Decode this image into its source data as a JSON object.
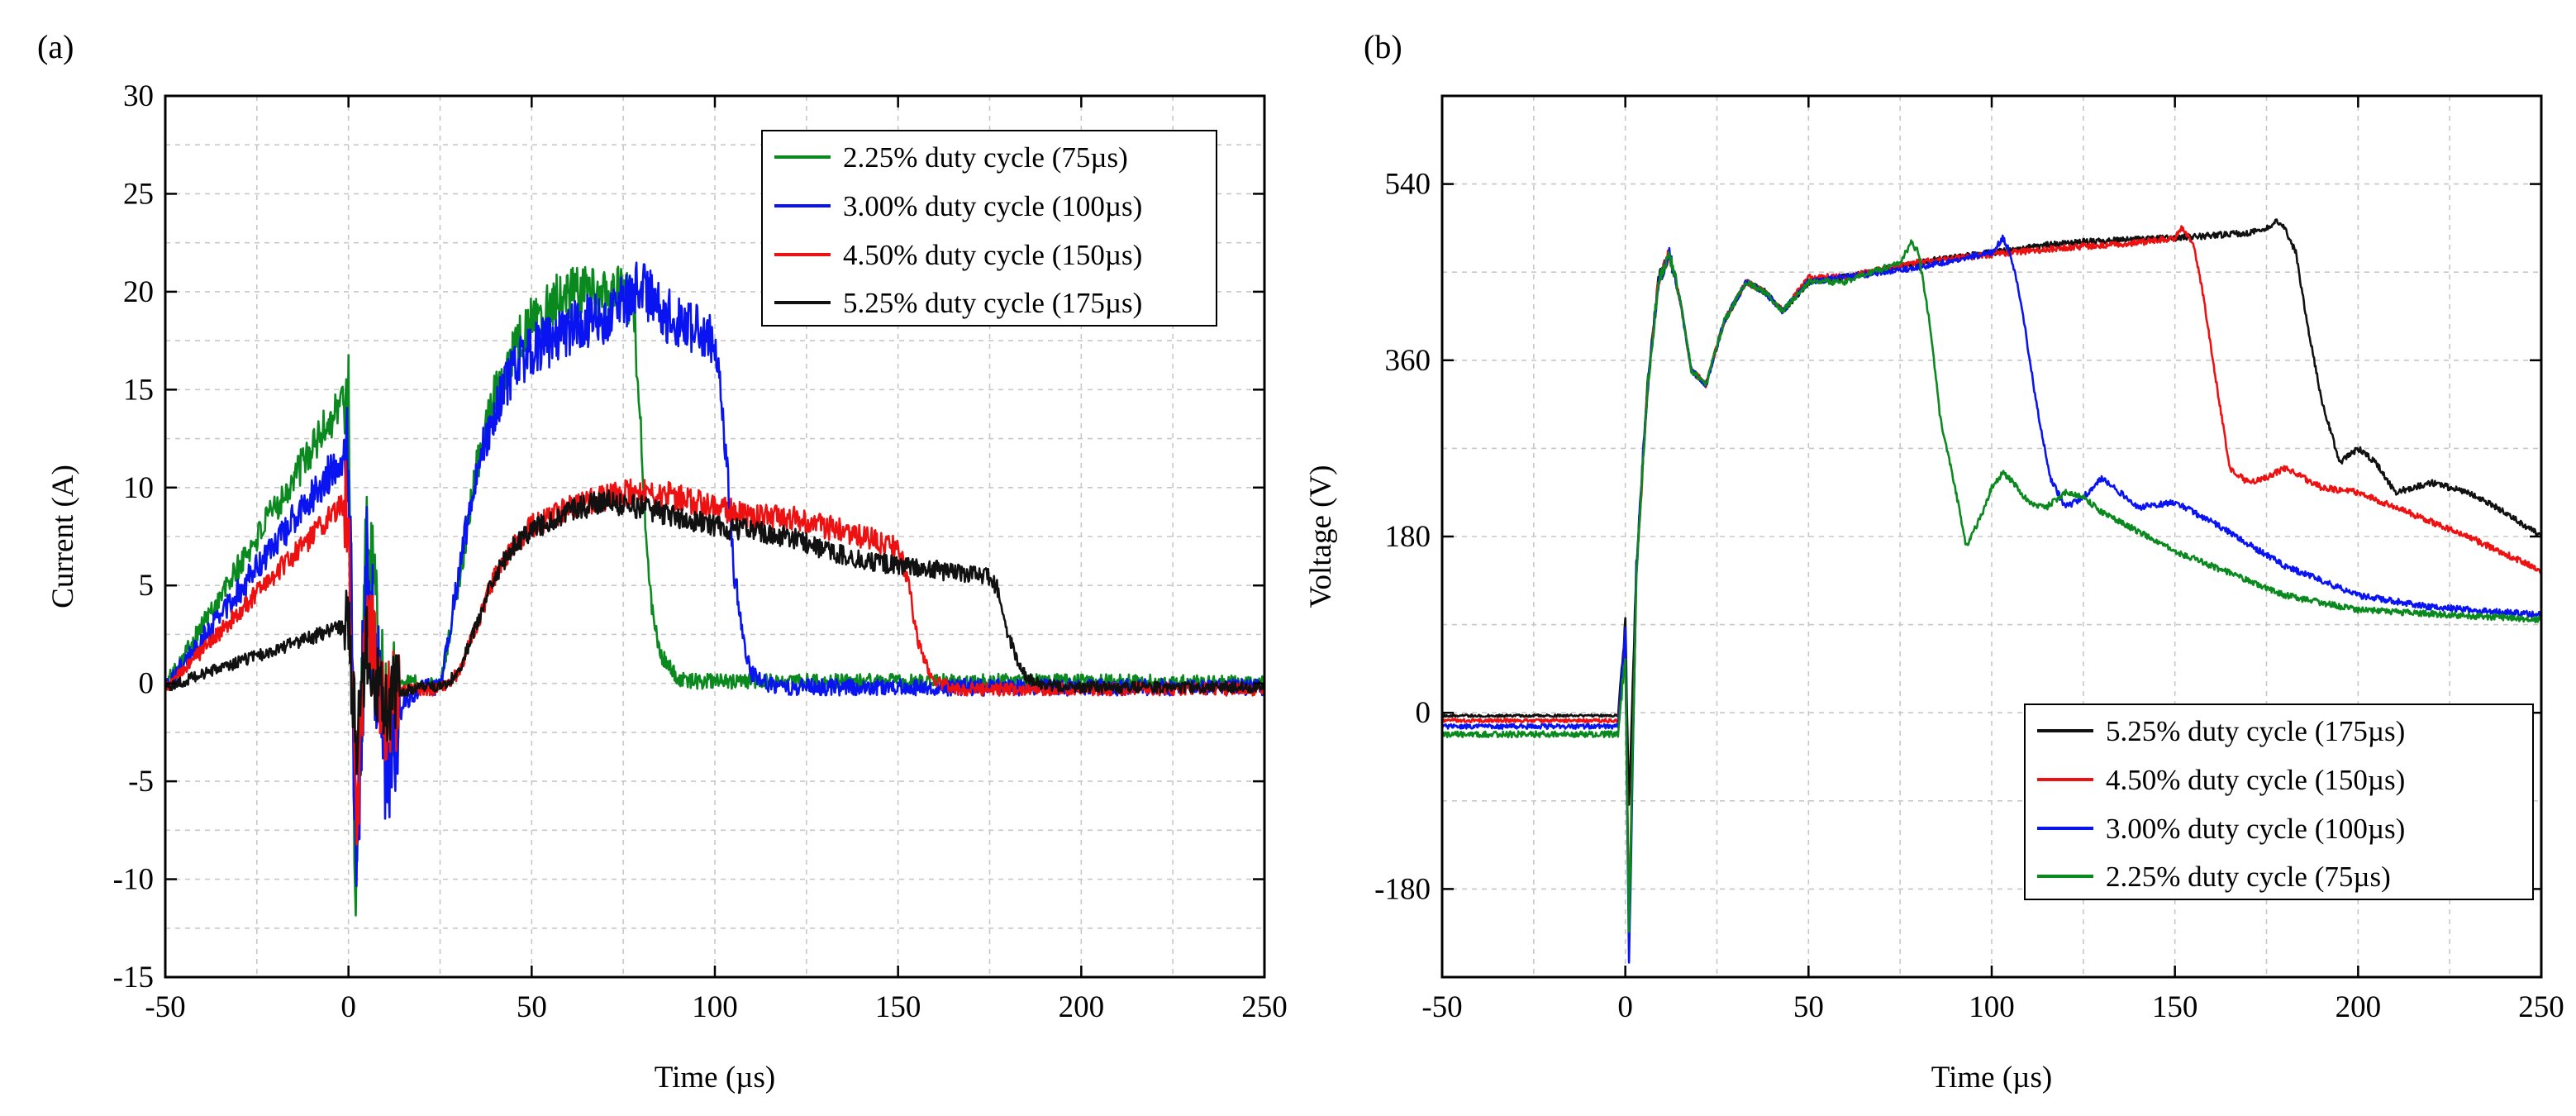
{
  "chart_data": [
    {
      "type": "line",
      "panel_label": "(a)",
      "xlabel": "Time (µs)",
      "ylabel": "Current (A)",
      "xlim": [
        -50,
        250
      ],
      "ylim": [
        -15,
        30
      ],
      "xticks": [
        -50,
        0,
        50,
        100,
        150,
        200,
        250
      ],
      "yticks": [
        -15,
        -10,
        -5,
        0,
        5,
        10,
        15,
        20,
        25,
        30
      ],
      "xticklabels": [
        "-50",
        "0",
        "50",
        "100",
        "150",
        "200",
        "250"
      ],
      "yticklabels": [
        "-15",
        "-10",
        "-5",
        "0",
        "5",
        "10",
        "15",
        "20",
        "25",
        "30"
      ],
      "grid": true,
      "legend": "top-right",
      "series": [
        {
          "name": "2.25% duty cycle (75µs)",
          "color": "#0a8a1e",
          "pulse_us": 75,
          "plateau": 20,
          "noise": 1.1,
          "x": [
            -50,
            0,
            2,
            5,
            10,
            15,
            20,
            25,
            30,
            35,
            40,
            45,
            50,
            55,
            60,
            65,
            70,
            75,
            78,
            80,
            82,
            85,
            90,
            95,
            100,
            150,
            200,
            250
          ],
          "y": [
            -0.1,
            15.0,
            -11.5,
            8.0,
            -2.0,
            0.3,
            -0.1,
            -0.1,
            5.0,
            11.0,
            15.0,
            17.0,
            18.5,
            19.5,
            20.0,
            20.0,
            20.0,
            20.0,
            19.0,
            12.0,
            5.0,
            1.5,
            0.2,
            0.1,
            0.1,
            0.1,
            0.1,
            0.0
          ]
        },
        {
          "name": "3.00% duty cycle (100µs)",
          "color": "#0a14f0",
          "pulse_us": 100,
          "plateau": 18.5,
          "noise": 1.2,
          "x": [
            -50,
            0,
            2,
            5,
            10,
            15,
            20,
            25,
            30,
            35,
            40,
            45,
            50,
            55,
            60,
            65,
            70,
            75,
            80,
            85,
            90,
            95,
            100,
            103,
            105,
            108,
            110,
            115,
            120,
            150,
            200,
            250
          ],
          "y": [
            -0.2,
            12.0,
            -10.0,
            6.0,
            -4.0,
            -1.0,
            -0.2,
            -0.2,
            5.5,
            11.0,
            14.0,
            16.0,
            17.0,
            17.5,
            18.0,
            18.5,
            18.5,
            19.5,
            20.5,
            19.0,
            18.5,
            18.0,
            17.5,
            12.0,
            6.0,
            2.0,
            0.5,
            -0.1,
            -0.2,
            -0.2,
            -0.2,
            -0.2
          ]
        },
        {
          "name": "4.50% duty cycle (150µs)",
          "color": "#ee1111",
          "pulse_us": 150,
          "plateau": 9.5,
          "noise": 0.9,
          "x": [
            -50,
            0,
            2,
            5,
            10,
            15,
            20,
            25,
            30,
            35,
            40,
            45,
            50,
            60,
            70,
            80,
            90,
            100,
            110,
            120,
            130,
            140,
            150,
            153,
            155,
            158,
            160,
            165,
            200,
            250
          ],
          "y": [
            -0.3,
            9.5,
            -8.0,
            4.0,
            -1.5,
            -0.3,
            -0.3,
            -0.3,
            0.5,
            3.0,
            5.5,
            7.0,
            8.0,
            9.0,
            9.5,
            9.8,
            9.5,
            9.0,
            8.5,
            8.5,
            8.0,
            7.5,
            7.0,
            5.0,
            2.5,
            0.8,
            0.2,
            -0.3,
            -0.3,
            -0.3
          ]
        },
        {
          "name": "5.25% duty cycle (175µs)",
          "color": "#111111",
          "pulse_us": 175,
          "plateau": 9.0,
          "noise": 0.8,
          "x": [
            -50,
            0,
            2,
            5,
            10,
            15,
            20,
            25,
            30,
            35,
            40,
            45,
            50,
            60,
            70,
            80,
            90,
            100,
            110,
            120,
            130,
            140,
            150,
            160,
            170,
            175,
            178,
            180,
            183,
            185,
            190,
            200,
            250
          ],
          "y": [
            -0.2,
            3.0,
            -3.0,
            1.5,
            -1.0,
            -0.4,
            -0.2,
            -0.2,
            0.5,
            3.0,
            5.5,
            7.0,
            7.8,
            8.8,
            9.3,
            9.0,
            8.5,
            8.0,
            7.8,
            7.5,
            6.8,
            6.3,
            6.0,
            5.8,
            5.5,
            5.5,
            4.5,
            2.5,
            1.0,
            0.3,
            -0.1,
            -0.2,
            -0.2
          ]
        }
      ]
    },
    {
      "type": "line",
      "panel_label": "(b)",
      "xlabel": "Time (µs)",
      "ylabel": "Voltage (V)",
      "xlim": [
        -50,
        250
      ],
      "ylim": [
        -270,
        630
      ],
      "xticks": [
        -50,
        0,
        50,
        100,
        150,
        200,
        250
      ],
      "yticks": [
        -180,
        0,
        180,
        360,
        540
      ],
      "xticklabels": [
        "-50",
        "0",
        "50",
        "100",
        "150",
        "200",
        "250"
      ],
      "yticklabels": [
        "-180",
        "0",
        "180",
        "360",
        "540"
      ],
      "grid": true,
      "legend": "bottom-right",
      "series": [
        {
          "name": "5.25% duty cycle (175µs)",
          "color": "#111111",
          "noise": 2.5,
          "x": [
            -50,
            -2,
            0,
            1,
            3,
            6,
            9,
            12,
            15,
            18,
            22,
            27,
            33,
            38,
            43,
            50,
            60,
            80,
            100,
            120,
            150,
            170,
            175,
            178,
            180,
            183,
            186,
            190,
            195,
            200,
            205,
            210,
            220,
            230,
            240,
            250
          ],
          "y": [
            -3,
            -3,
            90,
            -100,
            150,
            330,
            440,
            470,
            420,
            350,
            335,
            400,
            440,
            430,
            410,
            440,
            445,
            460,
            470,
            480,
            485,
            490,
            495,
            502,
            495,
            470,
            400,
            320,
            255,
            270,
            255,
            225,
            235,
            225,
            205,
            180
          ]
        },
        {
          "name": "4.50% duty cycle (150µs)",
          "color": "#ee1111",
          "noise": 2.5,
          "x": [
            -50,
            -2,
            0,
            1,
            3,
            6,
            9,
            12,
            15,
            18,
            22,
            27,
            33,
            38,
            43,
            50,
            60,
            80,
            100,
            120,
            140,
            150,
            152,
            155,
            158,
            162,
            165,
            170,
            175,
            180,
            185,
            190,
            200,
            210,
            230,
            250
          ],
          "y": [
            -8,
            -8,
            70,
            -210,
            140,
            330,
            440,
            470,
            420,
            350,
            335,
            400,
            440,
            430,
            410,
            445,
            445,
            460,
            468,
            475,
            480,
            485,
            495,
            480,
            420,
            320,
            250,
            235,
            240,
            250,
            240,
            230,
            225,
            210,
            180,
            145
          ]
        },
        {
          "name": "3.00% duty cycle (100µs)",
          "color": "#0a14f0",
          "noise": 2.5,
          "x": [
            -50,
            -2,
            0,
            1,
            3,
            6,
            9,
            12,
            15,
            18,
            22,
            27,
            33,
            38,
            43,
            50,
            60,
            80,
            100,
            103,
            105,
            108,
            112,
            116,
            120,
            125,
            130,
            135,
            140,
            150,
            160,
            180,
            200,
            220,
            250
          ],
          "y": [
            -14,
            -14,
            80,
            -260,
            150,
            330,
            440,
            470,
            420,
            350,
            335,
            400,
            440,
            430,
            410,
            440,
            445,
            455,
            470,
            485,
            470,
            420,
            320,
            240,
            210,
            220,
            240,
            225,
            210,
            215,
            195,
            150,
            120,
            108,
            100
          ]
        },
        {
          "name": "2.25% duty cycle (75µs)",
          "color": "#0a8a1e",
          "noise": 2.5,
          "x": [
            -50,
            -2,
            0,
            1,
            3,
            6,
            9,
            12,
            15,
            18,
            22,
            27,
            33,
            38,
            43,
            50,
            60,
            75,
            78,
            80,
            83,
            86,
            90,
            93,
            97,
            100,
            103,
            106,
            110,
            115,
            120,
            125,
            130,
            150,
            180,
            200,
            250
          ],
          "y": [
            -22,
            -22,
            60,
            -220,
            140,
            330,
            440,
            470,
            420,
            350,
            335,
            400,
            440,
            430,
            410,
            440,
            440,
            460,
            480,
            470,
            400,
            300,
            230,
            170,
            200,
            230,
            245,
            235,
            215,
            210,
            225,
            220,
            205,
            165,
            120,
            105,
            95
          ]
        }
      ]
    }
  ]
}
